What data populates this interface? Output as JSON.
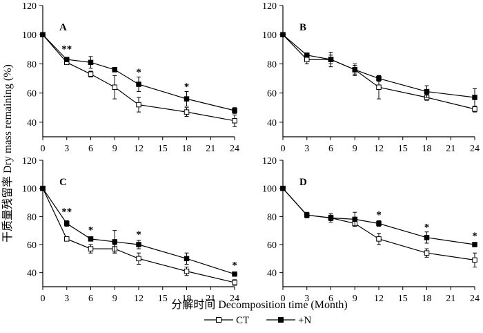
{
  "ylabel": "干质量残留率 Dry mass remaining (%)",
  "xlabel": "分解时间 Decomposition time (Month)",
  "legend": [
    {
      "label": "CT",
      "marker": "open-square"
    },
    {
      "label": "+N",
      "marker": "filled-square"
    }
  ],
  "chart_data": [
    {
      "type": "line",
      "panel": "A",
      "x": [
        0,
        3,
        6,
        9,
        12,
        18,
        24
      ],
      "xticks": [
        0,
        3,
        6,
        9,
        12,
        15,
        18,
        21,
        24
      ],
      "yticks": [
        40,
        60,
        80,
        100,
        120
      ],
      "xlim": [
        0,
        24
      ],
      "ylim": [
        30,
        120
      ],
      "series": [
        {
          "name": "CT",
          "values": [
            100,
            81,
            73,
            64,
            52,
            47,
            41
          ],
          "errors": [
            0,
            1.5,
            2,
            8,
            5,
            3,
            4
          ]
        },
        {
          "name": "+N",
          "values": [
            100,
            83,
            81,
            76,
            66,
            56,
            48
          ],
          "errors": [
            0,
            1.5,
            4,
            1.5,
            5,
            5,
            2
          ]
        }
      ],
      "annotations": [
        {
          "x": 3,
          "y": 90,
          "text": "**"
        },
        {
          "x": 12,
          "y": 74,
          "text": "*"
        },
        {
          "x": 18,
          "y": 64,
          "text": "*"
        }
      ]
    },
    {
      "type": "line",
      "panel": "B",
      "x": [
        0,
        3,
        6,
        9,
        12,
        18,
        24
      ],
      "xticks": [
        0,
        3,
        6,
        9,
        12,
        15,
        18,
        21,
        24
      ],
      "yticks": [
        40,
        60,
        80,
        100,
        120
      ],
      "xlim": [
        0,
        24
      ],
      "ylim": [
        30,
        120
      ],
      "series": [
        {
          "name": "CT",
          "values": [
            100,
            83,
            83,
            76,
            64,
            57,
            49
          ],
          "errors": [
            0,
            3,
            3,
            4,
            8,
            2,
            2
          ]
        },
        {
          "name": "+N",
          "values": [
            100,
            86,
            83,
            76,
            70,
            61,
            57
          ],
          "errors": [
            0,
            1.5,
            5,
            3,
            2,
            4,
            6
          ]
        }
      ],
      "annotations": []
    },
    {
      "type": "line",
      "panel": "C",
      "x": [
        0,
        3,
        6,
        9,
        12,
        18,
        24
      ],
      "xticks": [
        0,
        3,
        6,
        9,
        12,
        15,
        18,
        21,
        24
      ],
      "yticks": [
        40,
        60,
        80,
        100,
        120
      ],
      "xlim": [
        0,
        24
      ],
      "ylim": [
        30,
        120
      ],
      "series": [
        {
          "name": "CT",
          "values": [
            100,
            64,
            57,
            57,
            50,
            41,
            33
          ],
          "errors": [
            0,
            1.5,
            3,
            3,
            4,
            3,
            2
          ]
        },
        {
          "name": "+N",
          "values": [
            100,
            75,
            64,
            62,
            60,
            50,
            39
          ],
          "errors": [
            0,
            2,
            1.5,
            8,
            3,
            4,
            1
          ]
        }
      ],
      "annotations": [
        {
          "x": 3,
          "y": 83,
          "text": "**"
        },
        {
          "x": 6,
          "y": 70,
          "text": "*"
        },
        {
          "x": 12,
          "y": 67,
          "text": "*"
        },
        {
          "x": 24,
          "y": 45,
          "text": "*"
        }
      ]
    },
    {
      "type": "line",
      "panel": "D",
      "x": [
        0,
        3,
        6,
        9,
        12,
        18,
        24
      ],
      "xticks": [
        0,
        3,
        6,
        9,
        12,
        15,
        18,
        21,
        24
      ],
      "yticks": [
        40,
        60,
        80,
        100,
        120
      ],
      "xlim": [
        0,
        24
      ],
      "ylim": [
        30,
        120
      ],
      "series": [
        {
          "name": "CT",
          "values": [
            100,
            81,
            79,
            75,
            64,
            54,
            49
          ],
          "errors": [
            0,
            2,
            3,
            2,
            4,
            3,
            5
          ]
        },
        {
          "name": "+N",
          "values": [
            100,
            81,
            79,
            78,
            75,
            65,
            60
          ],
          "errors": [
            0,
            1.5,
            2,
            5,
            2,
            4,
            1
          ]
        }
      ],
      "annotations": [
        {
          "x": 12,
          "y": 81,
          "text": "*"
        },
        {
          "x": 18,
          "y": 72,
          "text": "*"
        },
        {
          "x": 24,
          "y": 66,
          "text": "*"
        }
      ]
    }
  ]
}
